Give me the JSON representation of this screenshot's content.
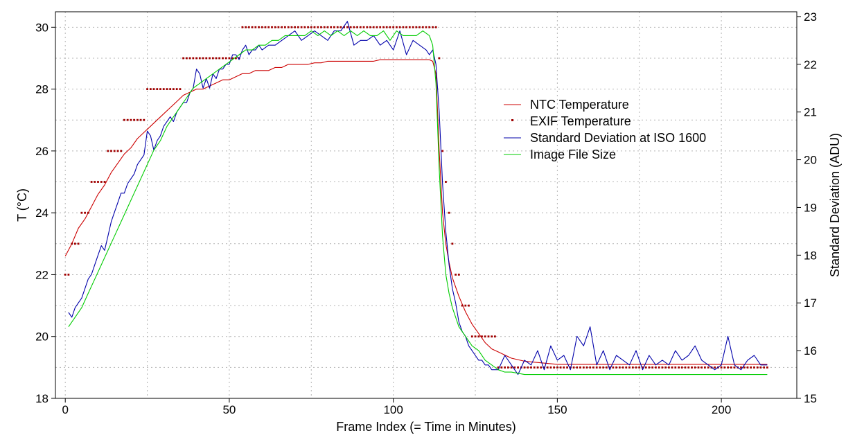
{
  "chart_data": {
    "type": "line",
    "xlabel": "Frame Index (= Time in Minutes)",
    "ylabel_left": "T (°C)",
    "ylabel_right": "Standard Deviation (ADU)",
    "xlim": [
      -3,
      223
    ],
    "ylim_left": [
      18,
      30.5
    ],
    "ylim_right": [
      15,
      23.1
    ],
    "x_ticks": [
      0,
      50,
      100,
      150,
      200
    ],
    "y_left_ticks": [
      18,
      20,
      22,
      24,
      26,
      28,
      30
    ],
    "y_right_ticks": [
      15,
      16,
      17,
      18,
      19,
      20,
      21,
      22,
      23
    ],
    "grid": true,
    "legend_position": "center-right",
    "series": [
      {
        "name": "NTC Temperature",
        "axis": "left",
        "style": "line",
        "color": "#cc0000",
        "x": [
          0,
          2,
          4,
          6,
          8,
          10,
          12,
          14,
          16,
          18,
          20,
          22,
          24,
          26,
          28,
          30,
          32,
          34,
          36,
          38,
          40,
          42,
          44,
          46,
          48,
          50,
          52,
          54,
          56,
          58,
          60,
          62,
          64,
          66,
          68,
          70,
          72,
          74,
          76,
          78,
          80,
          82,
          84,
          86,
          88,
          90,
          92,
          94,
          96,
          98,
          100,
          102,
          104,
          106,
          108,
          110,
          111,
          112,
          113,
          114,
          115,
          116,
          117,
          118,
          120,
          122,
          124,
          126,
          128,
          130,
          132,
          134,
          136,
          140,
          145,
          150,
          160,
          170,
          180,
          190,
          200,
          210,
          214
        ],
        "values": [
          22.6,
          23.0,
          23.5,
          23.8,
          24.2,
          24.6,
          24.9,
          25.3,
          25.6,
          25.9,
          26.1,
          26.4,
          26.6,
          26.8,
          27.0,
          27.2,
          27.4,
          27.6,
          27.8,
          27.9,
          28.0,
          28.0,
          28.1,
          28.2,
          28.3,
          28.3,
          28.4,
          28.5,
          28.5,
          28.6,
          28.6,
          28.6,
          28.7,
          28.7,
          28.8,
          28.8,
          28.8,
          28.8,
          28.85,
          28.85,
          28.9,
          28.9,
          28.9,
          28.9,
          28.9,
          28.9,
          28.9,
          28.9,
          28.95,
          28.95,
          28.95,
          28.95,
          28.95,
          28.95,
          28.95,
          28.95,
          28.95,
          28.9,
          28.5,
          26.0,
          24.0,
          23.0,
          22.4,
          21.9,
          21.3,
          20.8,
          20.4,
          20.1,
          19.8,
          19.6,
          19.5,
          19.4,
          19.3,
          19.2,
          19.15,
          19.1,
          19.1,
          19.1,
          19.1,
          19.1,
          19.1,
          19.1,
          19.1
        ]
      },
      {
        "name": "EXIF Temperature",
        "axis": "left",
        "style": "markers",
        "color": "#a00000",
        "steps": [
          {
            "x_start": 0,
            "x_end": 1,
            "value": 22
          },
          {
            "x_start": 2,
            "x_end": 4,
            "value": 23
          },
          {
            "x_start": 5,
            "x_end": 7,
            "value": 24
          },
          {
            "x_start": 8,
            "x_end": 12,
            "value": 25
          },
          {
            "x_start": 13,
            "x_end": 17,
            "value": 26
          },
          {
            "x_start": 18,
            "x_end": 24,
            "value": 27
          },
          {
            "x_start": 25,
            "x_end": 35,
            "value": 28
          },
          {
            "x_start": 36,
            "x_end": 53,
            "value": 29
          },
          {
            "x_start": 54,
            "x_end": 113,
            "value": 30
          },
          {
            "x_start": 114,
            "x_end": 114,
            "value": 29
          },
          {
            "x_start": 115,
            "x_end": 115,
            "value": 26
          },
          {
            "x_start": 116,
            "x_end": 116,
            "value": 25
          },
          {
            "x_start": 117,
            "x_end": 117,
            "value": 24
          },
          {
            "x_start": 118,
            "x_end": 118,
            "value": 23
          },
          {
            "x_start": 119,
            "x_end": 120,
            "value": 22
          },
          {
            "x_start": 121,
            "x_end": 123,
            "value": 21
          },
          {
            "x_start": 124,
            "x_end": 131,
            "value": 20
          },
          {
            "x_start": 132,
            "x_end": 214,
            "value": 19
          }
        ]
      },
      {
        "name": "Standard Deviation at ISO 1600",
        "axis": "right",
        "style": "line",
        "color": "#0000aa",
        "x": [
          1,
          2,
          3,
          4,
          5,
          6,
          7,
          8,
          9,
          10,
          11,
          12,
          13,
          14,
          15,
          16,
          17,
          18,
          19,
          20,
          21,
          22,
          23,
          24,
          25,
          26,
          27,
          28,
          29,
          30,
          31,
          32,
          33,
          34,
          35,
          36,
          37,
          38,
          39,
          40,
          41,
          42,
          43,
          44,
          45,
          46,
          47,
          48,
          49,
          50,
          51,
          52,
          53,
          54,
          55,
          56,
          57,
          58,
          59,
          60,
          62,
          64,
          66,
          68,
          70,
          72,
          74,
          76,
          78,
          80,
          82,
          84,
          86,
          88,
          90,
          92,
          94,
          96,
          98,
          100,
          102,
          104,
          106,
          108,
          110,
          111,
          112,
          113,
          114,
          115,
          116,
          117,
          118,
          119,
          120,
          121,
          122,
          123,
          124,
          125,
          126,
          127,
          128,
          129,
          130,
          132,
          134,
          136,
          138,
          140,
          142,
          144,
          146,
          148,
          150,
          152,
          154,
          156,
          158,
          160,
          162,
          164,
          166,
          168,
          170,
          172,
          174,
          176,
          178,
          180,
          182,
          184,
          186,
          188,
          190,
          192,
          194,
          196,
          198,
          200,
          202,
          204,
          206,
          208,
          210,
          212,
          214
        ],
        "values": [
          16.8,
          16.7,
          16.9,
          17.0,
          17.1,
          17.3,
          17.5,
          17.6,
          17.8,
          18.0,
          18.2,
          18.1,
          18.4,
          18.7,
          18.9,
          19.1,
          19.3,
          19.3,
          19.5,
          19.6,
          19.7,
          19.9,
          20.0,
          20.1,
          20.6,
          20.5,
          20.2,
          20.4,
          20.5,
          20.7,
          20.8,
          20.9,
          20.8,
          21.0,
          21.1,
          21.2,
          21.2,
          21.4,
          21.5,
          21.9,
          21.8,
          21.5,
          21.7,
          21.5,
          21.8,
          21.7,
          21.9,
          21.9,
          22.0,
          22.0,
          22.2,
          22.2,
          22.1,
          22.3,
          22.4,
          22.2,
          22.3,
          22.3,
          22.4,
          22.3,
          22.4,
          22.4,
          22.5,
          22.6,
          22.7,
          22.5,
          22.6,
          22.7,
          22.6,
          22.5,
          22.7,
          22.7,
          22.9,
          22.4,
          22.5,
          22.5,
          22.6,
          22.4,
          22.5,
          22.3,
          22.7,
          22.2,
          22.5,
          22.4,
          22.3,
          22.2,
          22.3,
          22.0,
          21.0,
          19.5,
          18.5,
          17.8,
          17.3,
          17.0,
          16.6,
          16.4,
          16.3,
          16.1,
          16.0,
          15.9,
          15.8,
          15.8,
          15.7,
          15.7,
          15.6,
          15.6,
          15.9,
          15.7,
          15.5,
          15.8,
          15.7,
          16.0,
          15.6,
          16.1,
          15.8,
          15.9,
          15.6,
          16.3,
          16.1,
          16.5,
          15.7,
          16.0,
          15.6,
          15.9,
          15.8,
          15.7,
          16.0,
          15.6,
          15.9,
          15.7,
          15.8,
          15.7,
          16.0,
          15.8,
          15.9,
          16.1,
          15.8,
          15.7,
          15.6,
          15.7,
          16.3,
          15.7,
          15.6,
          15.8,
          15.9,
          15.7,
          15.7
        ]
      },
      {
        "name": "Image File Size",
        "axis": "right",
        "style": "line",
        "color": "#00cc00",
        "x": [
          1,
          3,
          5,
          7,
          9,
          11,
          13,
          15,
          17,
          19,
          21,
          23,
          25,
          27,
          29,
          31,
          33,
          35,
          37,
          39,
          41,
          43,
          45,
          47,
          49,
          51,
          53,
          55,
          57,
          59,
          61,
          63,
          65,
          67,
          69,
          71,
          73,
          75,
          77,
          79,
          81,
          83,
          85,
          87,
          89,
          91,
          93,
          95,
          97,
          99,
          101,
          103,
          105,
          107,
          109,
          111,
          112,
          113,
          114,
          115,
          116,
          117,
          118,
          120,
          122,
          124,
          126,
          128,
          130,
          132,
          134,
          136,
          140,
          150,
          160,
          170,
          180,
          190,
          200,
          210,
          214
        ],
        "values": [
          16.5,
          16.7,
          16.9,
          17.2,
          17.5,
          17.8,
          18.1,
          18.4,
          18.7,
          19.0,
          19.3,
          19.6,
          19.9,
          20.2,
          20.4,
          20.7,
          20.9,
          21.1,
          21.3,
          21.5,
          21.6,
          21.7,
          21.8,
          21.9,
          22.0,
          22.1,
          22.2,
          22.3,
          22.3,
          22.4,
          22.4,
          22.5,
          22.5,
          22.6,
          22.6,
          22.6,
          22.6,
          22.7,
          22.6,
          22.7,
          22.6,
          22.7,
          22.6,
          22.7,
          22.6,
          22.7,
          22.6,
          22.6,
          22.7,
          22.5,
          22.7,
          22.6,
          22.6,
          22.6,
          22.7,
          22.6,
          22.4,
          21.6,
          19.8,
          18.4,
          17.6,
          17.2,
          16.9,
          16.5,
          16.3,
          16.1,
          16.0,
          15.8,
          15.7,
          15.6,
          15.55,
          15.55,
          15.5,
          15.5,
          15.5,
          15.5,
          15.5,
          15.5,
          15.5,
          15.5,
          15.5
        ]
      }
    ]
  }
}
